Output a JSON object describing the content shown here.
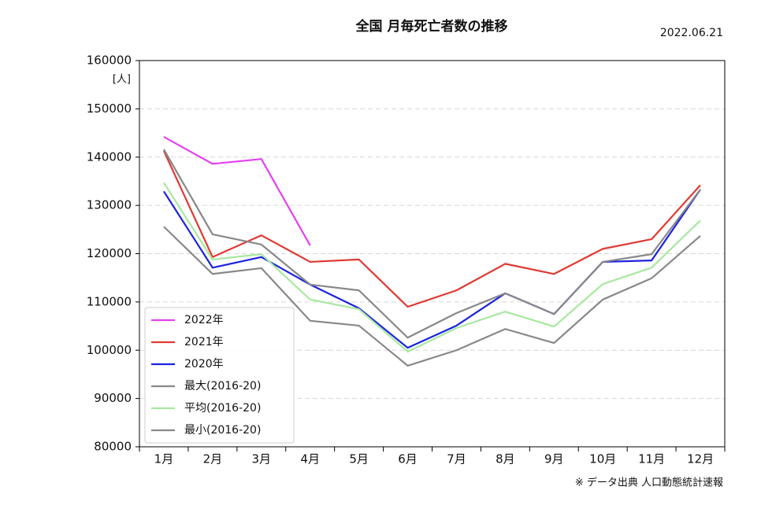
{
  "chart_data": {
    "type": "line",
    "title": "全国 月毎死亡者数の推移",
    "date": "2022.06.21",
    "y_unit": "[人]",
    "source": "※ データ出典 人口動態統計速報",
    "categories": [
      "1月",
      "2月",
      "3月",
      "4月",
      "5月",
      "6月",
      "7月",
      "8月",
      "9月",
      "10月",
      "11月",
      "12月"
    ],
    "series": [
      {
        "name": "2022年",
        "color": "#e440f0",
        "values": [
          144200,
          138600,
          139600,
          121700,
          null,
          null,
          null,
          null,
          null,
          null,
          null,
          null
        ]
      },
      {
        "name": "2021年",
        "color": "#e03a32",
        "values": [
          141300,
          119300,
          123800,
          118300,
          118800,
          109000,
          112400,
          117900,
          115800,
          121000,
          123000,
          134200
        ]
      },
      {
        "name": "2020年",
        "color": "#1a22e0",
        "values": [
          132900,
          117100,
          119300,
          113600,
          108700,
          100500,
          105100,
          111800,
          107500,
          118300,
          118600,
          133300
        ]
      },
      {
        "name": "最大(2016-20)",
        "color": "#888888",
        "values": [
          141600,
          124000,
          121900,
          113600,
          112400,
          102600,
          107700,
          111800,
          107500,
          118300,
          119900,
          133300
        ]
      },
      {
        "name": "平均(2016-20)",
        "color": "#a8e8a0",
        "values": [
          134700,
          118800,
          119900,
          110500,
          108500,
          99700,
          104600,
          108000,
          104900,
          113700,
          117100,
          126900
        ]
      },
      {
        "name": "最小(2016-20)",
        "color": "#888888",
        "values": [
          125600,
          115800,
          117000,
          106100,
          105100,
          96800,
          100000,
          104400,
          101500,
          110500,
          114900,
          123700
        ]
      }
    ],
    "ylim": [
      80000,
      160000
    ],
    "yticks": [
      80000,
      90000,
      100000,
      110000,
      120000,
      130000,
      140000,
      150000,
      160000
    ],
    "grid": true,
    "legend": "lower left"
  }
}
